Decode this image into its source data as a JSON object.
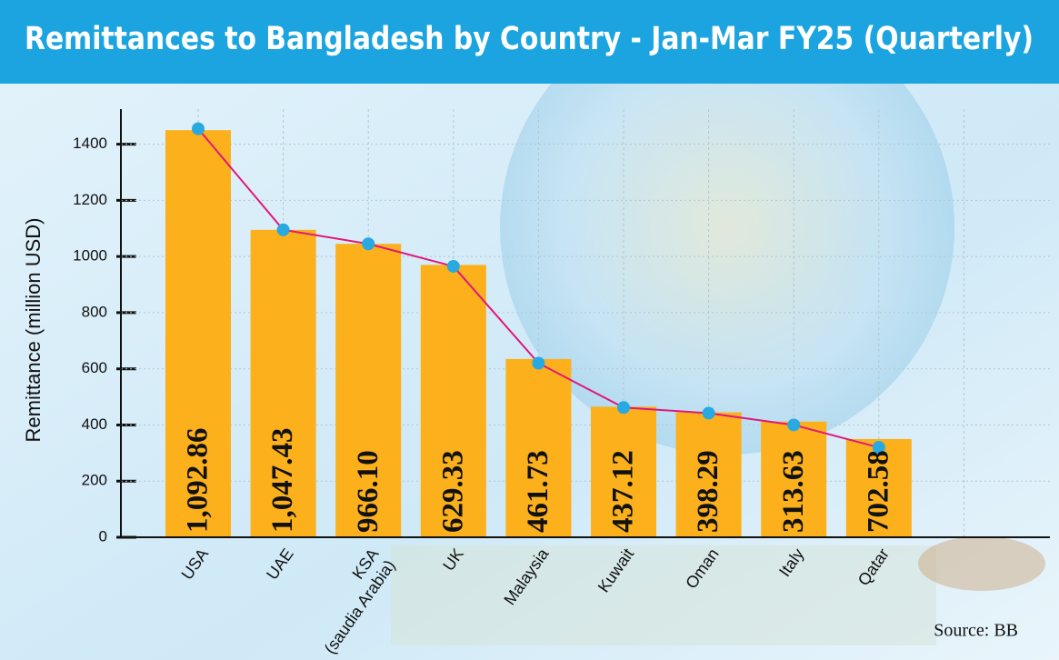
{
  "chart_data": {
    "type": "bar",
    "title": "Remittances to Bangladesh by Country - Jan-Mar FY25 (Quarterly)",
    "y_label": "Remittance (million USD)",
    "source": "Source: BB",
    "categories": [
      "USA",
      "UAE",
      "KSA\n(saudia Arabia)",
      "UK",
      "Malaysia",
      "Kuwait",
      "Oman",
      "Italy",
      "Qatar"
    ],
    "series": [
      {
        "color": "#fbb01c",
        "values": [
          1450,
          1095,
          1045,
          970,
          635,
          465,
          445,
          412,
          350
        ]
      },
      {
        "type": "line",
        "color": "#e0187a",
        "marker_color": "#29a9e1",
        "values": [
          1455,
          1095,
          1045,
          965,
          620,
          462,
          442,
          400,
          320
        ]
      }
    ],
    "annotations": [
      "1,092.86",
      "1,047.43",
      "966.10",
      "629.33",
      "461.73",
      "437.12",
      "398.29",
      "313.63",
      "702.58"
    ],
    "ylim": [
      0,
      1525
    ],
    "yticks": [
      0,
      200,
      400,
      600,
      800,
      1000,
      1200,
      1400
    ],
    "grid": true
  }
}
